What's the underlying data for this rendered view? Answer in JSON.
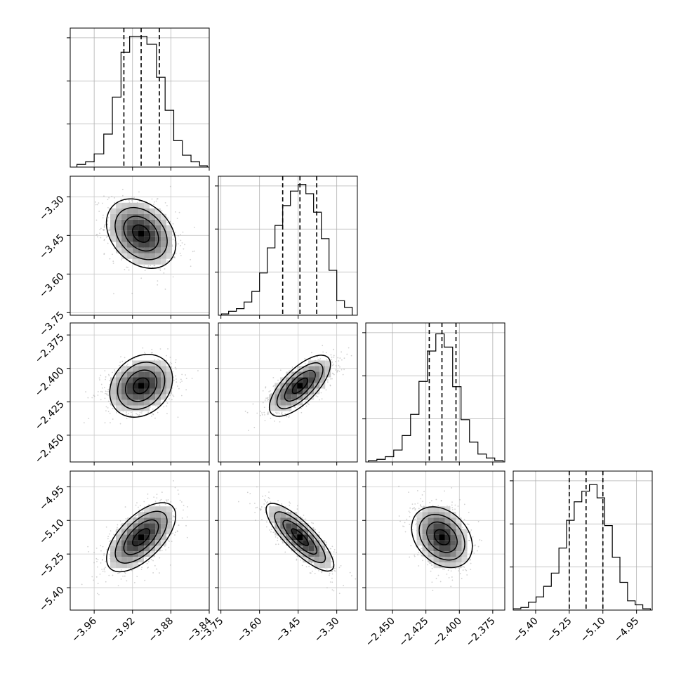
{
  "chart_data": {
    "type": "corner",
    "title": "",
    "n_params": 4,
    "quantile_lines": "dashed",
    "grid": true,
    "parameters": [
      {
        "label": "",
        "range": [
          -3.985,
          -3.84
        ],
        "median": -3.911,
        "q16": -3.929,
        "q84": -3.892,
        "ticks": [
          -3.96,
          -3.92,
          -3.88,
          -3.84
        ],
        "tick_labels": [
          "−3.96",
          "−3.92",
          "−3.88",
          "−3.84"
        ],
        "hist_bins": [
          -3.978,
          -3.969,
          -3.96,
          -3.95,
          -3.941,
          -3.932,
          -3.923,
          -3.914,
          -3.905,
          -3.895,
          -3.886,
          -3.877,
          -3.868,
          -3.859,
          -3.85,
          -3.842
        ],
        "hist_heights": [
          0.02,
          0.04,
          0.1,
          0.25,
          0.53,
          0.87,
          0.99,
          0.99,
          0.93,
          0.68,
          0.43,
          0.2,
          0.09,
          0.04,
          0.01
        ]
      },
      {
        "label": "",
        "range": [
          -3.76,
          -3.22
        ],
        "median": -3.443,
        "q16": -3.51,
        "q84": -3.378,
        "ticks": [
          -3.75,
          -3.6,
          -3.45,
          -3.3
        ],
        "tick_labels": [
          "−3.75",
          "−3.60",
          "−3.45",
          "−3.30"
        ],
        "hist_bins": [
          -3.748,
          -3.72,
          -3.69,
          -3.66,
          -3.63,
          -3.6,
          -3.57,
          -3.54,
          -3.51,
          -3.48,
          -3.45,
          -3.42,
          -3.39,
          -3.36,
          -3.33,
          -3.3,
          -3.27,
          -3.24
        ],
        "hist_heights": [
          0.01,
          0.03,
          0.05,
          0.1,
          0.18,
          0.32,
          0.51,
          0.68,
          0.83,
          0.94,
          0.99,
          0.92,
          0.78,
          0.58,
          0.34,
          0.11,
          0.06
        ]
      },
      {
        "label": "",
        "range": [
          -2.47,
          -2.366
        ],
        "median": -2.413,
        "q16": -2.4225,
        "q84": -2.4025,
        "ticks": [
          -2.45,
          -2.425,
          -2.4,
          -2.375
        ],
        "tick_labels": [
          "−2.450",
          "−2.425",
          "−2.400",
          "−2.375"
        ],
        "hist_bins": [
          -2.468,
          -2.4617,
          -2.4554,
          -2.4491,
          -2.4428,
          -2.4365,
          -2.4302,
          -2.4239,
          -2.4176,
          -2.4113,
          -2.405,
          -2.3987,
          -2.3924,
          -2.3861,
          -2.3798,
          -2.3735,
          -2.3672
        ],
        "hist_heights": [
          0.01,
          0.02,
          0.04,
          0.09,
          0.2,
          0.36,
          0.61,
          0.84,
          0.97,
          0.87,
          0.57,
          0.32,
          0.15,
          0.06,
          0.03,
          0.01
        ]
      },
      {
        "label": "",
        "range": [
          -5.5,
          -4.88
        ],
        "median": -5.175,
        "q16": -5.25,
        "q84": -5.1,
        "ticks": [
          -5.4,
          -5.25,
          -5.1,
          -4.95
        ],
        "tick_labels": [
          "−5.40",
          "−5.25",
          "−5.10",
          "−4.95"
        ],
        "hist_bins": [
          -5.5,
          -5.466,
          -5.432,
          -5.398,
          -5.364,
          -5.33,
          -5.296,
          -5.262,
          -5.228,
          -5.194,
          -5.16,
          -5.126,
          -5.092,
          -5.058,
          -5.024,
          -4.99,
          -4.956,
          -4.922,
          -4.888
        ],
        "hist_heights": [
          0.01,
          0.02,
          0.06,
          0.1,
          0.18,
          0.28,
          0.47,
          0.68,
          0.82,
          0.9,
          0.95,
          0.85,
          0.64,
          0.4,
          0.21,
          0.07,
          0.04,
          0.01
        ]
      }
    ],
    "y_tick_labels": {
      "1": [
        "−3.30",
        "−3.45",
        "−3.60",
        "−3.75"
      ],
      "2": [
        "−2.375",
        "−2.400",
        "−2.425",
        "−2.450"
      ],
      "3": [
        "−4.95",
        "−5.10",
        "−5.25",
        "−5.40"
      ]
    },
    "correlations": [
      {
        "row": 1,
        "col": 0,
        "rho": -0.3
      },
      {
        "row": 2,
        "col": 0,
        "rho": 0.22
      },
      {
        "row": 2,
        "col": 1,
        "rho": 0.7
      },
      {
        "row": 3,
        "col": 0,
        "rho": 0.62
      },
      {
        "row": 3,
        "col": 1,
        "rho": -0.82
      },
      {
        "row": 3,
        "col": 2,
        "rho": -0.3
      }
    ]
  }
}
